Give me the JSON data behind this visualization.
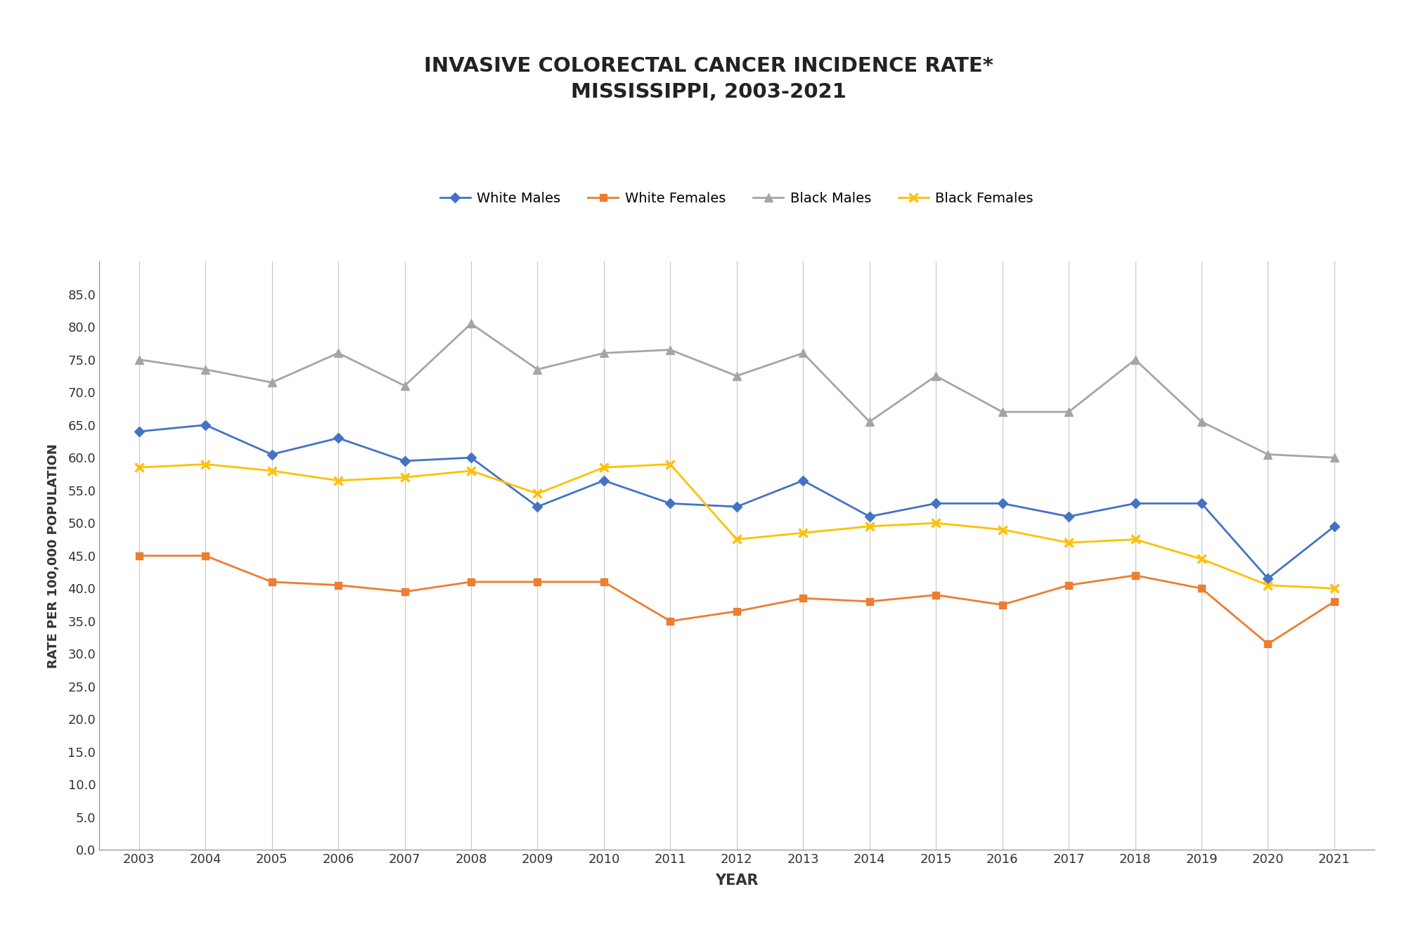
{
  "title": "INVASIVE COLORECTAL CANCER INCIDENCE RATE*\nMISSISSIPPI, 2003-2021",
  "xlabel": "YEAR",
  "ylabel": "RATE PER 100,000 POPULATION",
  "years": [
    2003,
    2004,
    2005,
    2006,
    2007,
    2008,
    2009,
    2010,
    2011,
    2012,
    2013,
    2014,
    2015,
    2016,
    2017,
    2018,
    2019,
    2020,
    2021
  ],
  "white_males": [
    64.0,
    65.0,
    60.5,
    63.0,
    59.5,
    60.0,
    52.5,
    56.5,
    53.0,
    52.5,
    56.5,
    51.0,
    53.0,
    53.0,
    51.0,
    53.0,
    53.0,
    41.5,
    49.5
  ],
  "white_females": [
    45.0,
    45.0,
    41.0,
    40.5,
    39.5,
    41.0,
    41.0,
    41.0,
    35.0,
    36.5,
    38.5,
    38.0,
    39.0,
    37.5,
    40.5,
    42.0,
    40.0,
    31.5,
    38.0
  ],
  "black_males": [
    75.0,
    73.5,
    71.5,
    76.0,
    71.0,
    80.5,
    73.5,
    76.0,
    76.5,
    72.5,
    76.0,
    65.5,
    72.5,
    67.0,
    67.0,
    75.0,
    65.5,
    60.5,
    60.0
  ],
  "black_females": [
    58.5,
    59.0,
    58.0,
    56.5,
    57.0,
    58.0,
    54.5,
    58.5,
    59.0,
    47.5,
    48.5,
    49.5,
    50.0,
    49.0,
    47.0,
    47.5,
    44.5,
    40.5,
    40.0
  ],
  "white_males_color": "#4472C4",
  "white_females_color": "#ED7D31",
  "black_males_color": "#A5A5A5",
  "black_females_color": "#FFC000",
  "ylim": [
    0,
    90
  ],
  "yticks": [
    0.0,
    5.0,
    10.0,
    15.0,
    20.0,
    25.0,
    30.0,
    35.0,
    40.0,
    45.0,
    50.0,
    55.0,
    60.0,
    65.0,
    70.0,
    75.0,
    80.0,
    85.0
  ],
  "bg_color": "#FFFFFF",
  "grid_color": "#C8C8C8"
}
